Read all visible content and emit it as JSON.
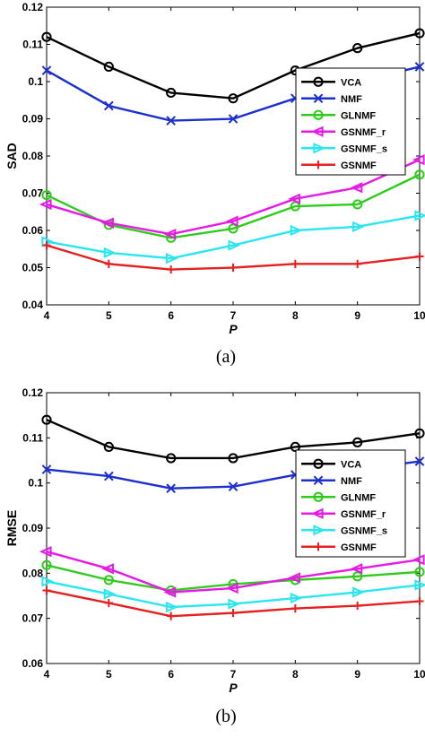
{
  "chart_data": [
    {
      "type": "line",
      "caption": "(a)",
      "xlabel": "P",
      "ylabel": "SAD",
      "x": [
        4,
        5,
        6,
        7,
        8,
        9,
        10
      ],
      "xlim": [
        4,
        10
      ],
      "ylim": [
        0.04,
        0.12
      ],
      "yticks": [
        0.04,
        0.05,
        0.06,
        0.07,
        0.08,
        0.09,
        0.1,
        0.11,
        0.12
      ],
      "ytick_labels": [
        "0.04",
        "0.05",
        "0.06",
        "0.07",
        "0.08",
        "0.09",
        "0.1",
        "0.11",
        "0.12"
      ],
      "xtick_labels": [
        "4",
        "5",
        "6",
        "7",
        "8",
        "9",
        "10"
      ],
      "grid": false,
      "legend_position": "right",
      "series": [
        {
          "name": "VCA",
          "color": "#000000",
          "marker": "circle",
          "values": [
            0.112,
            0.104,
            0.097,
            0.0955,
            0.103,
            0.109,
            0.113
          ]
        },
        {
          "name": "NMF",
          "color": "#1c2fcf",
          "marker": "x",
          "values": [
            0.103,
            0.0935,
            0.0895,
            0.09,
            0.0955,
            0.1,
            0.104
          ]
        },
        {
          "name": "GLNMF",
          "color": "#2ecc1a",
          "marker": "circle",
          "values": [
            0.0695,
            0.0615,
            0.058,
            0.0605,
            0.0665,
            0.067,
            0.075
          ]
        },
        {
          "name": "GSNMF_r",
          "color": "#e619e6",
          "marker": "triangle-left",
          "values": [
            0.067,
            0.062,
            0.059,
            0.0625,
            0.0685,
            0.0715,
            0.079
          ]
        },
        {
          "name": "GSNMF_s",
          "color": "#29e6f0",
          "marker": "triangle-right",
          "values": [
            0.057,
            0.054,
            0.0525,
            0.056,
            0.06,
            0.061,
            0.064
          ]
        },
        {
          "name": "GSNMF",
          "color": "#e62020",
          "marker": "plus",
          "values": [
            0.056,
            0.051,
            0.0495,
            0.05,
            0.051,
            0.051,
            0.053
          ]
        }
      ]
    },
    {
      "type": "line",
      "caption": "(b)",
      "xlabel": "P",
      "ylabel": "RMSE",
      "x": [
        4,
        5,
        6,
        7,
        8,
        9,
        10
      ],
      "xlim": [
        4,
        10
      ],
      "ylim": [
        0.06,
        0.12
      ],
      "yticks": [
        0.06,
        0.07,
        0.08,
        0.09,
        0.1,
        0.11,
        0.12
      ],
      "ytick_labels": [
        "0.06",
        "0.07",
        "0.08",
        "0.09",
        "0.1",
        "0.11",
        "0.12"
      ],
      "xtick_labels": [
        "4",
        "5",
        "6",
        "7",
        "8",
        "9",
        "10"
      ],
      "grid": false,
      "legend_position": "right",
      "series": [
        {
          "name": "VCA",
          "color": "#000000",
          "marker": "circle",
          "values": [
            0.114,
            0.108,
            0.1055,
            0.1055,
            0.108,
            0.109,
            0.111
          ]
        },
        {
          "name": "NMF",
          "color": "#1c2fcf",
          "marker": "x",
          "values": [
            0.103,
            0.1015,
            0.0988,
            0.0992,
            0.1018,
            0.103,
            0.1048
          ]
        },
        {
          "name": "GLNMF",
          "color": "#2ecc1a",
          "marker": "circle",
          "values": [
            0.0818,
            0.0785,
            0.0762,
            0.0776,
            0.0785,
            0.0793,
            0.0803
          ]
        },
        {
          "name": "GSNMF_r",
          "color": "#e619e6",
          "marker": "triangle-left",
          "values": [
            0.0848,
            0.081,
            0.0758,
            0.0767,
            0.079,
            0.081,
            0.083
          ]
        },
        {
          "name": "GSNMF_s",
          "color": "#29e6f0",
          "marker": "triangle-right",
          "values": [
            0.0782,
            0.0754,
            0.0725,
            0.0732,
            0.0745,
            0.0758,
            0.0774
          ]
        },
        {
          "name": "GSNMF",
          "color": "#e62020",
          "marker": "plus",
          "values": [
            0.0762,
            0.0734,
            0.0705,
            0.0712,
            0.0722,
            0.0728,
            0.0738
          ]
        }
      ]
    }
  ]
}
